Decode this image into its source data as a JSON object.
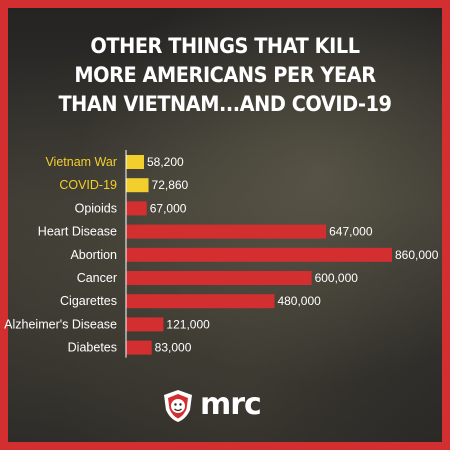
{
  "title_lines": [
    "OTHER THINGS THAT KILL",
    "MORE AMERICANS PER YEAR",
    "THAN VIETNAM...AND COVID-19"
  ],
  "brand": "mrc",
  "colors": {
    "border": "#d42f30",
    "bar_red": "#d42f30",
    "highlight_yellow": "#f2cf2c",
    "text_white": "#ffffff"
  },
  "chart_data": {
    "type": "bar",
    "orientation": "horizontal",
    "categories": [
      "Vietnam War",
      "COVID-19",
      "Opioids",
      "Heart Disease",
      "Abortion",
      "Cancer",
      "Cigarettes",
      "Alzheimer's Disease",
      "Diabetes"
    ],
    "values": [
      58200,
      72860,
      67000,
      647000,
      860000,
      600000,
      480000,
      121000,
      83000
    ],
    "value_labels": [
      "58,200",
      "72,860",
      "67,000",
      "647,000",
      "860,000",
      "600,000",
      "480,000",
      "121,000",
      "83,000"
    ],
    "highlighted": [
      true,
      true,
      false,
      false,
      false,
      false,
      false,
      false,
      false
    ],
    "xlim": [
      0,
      860000
    ],
    "grid": false,
    "legend": "none"
  }
}
